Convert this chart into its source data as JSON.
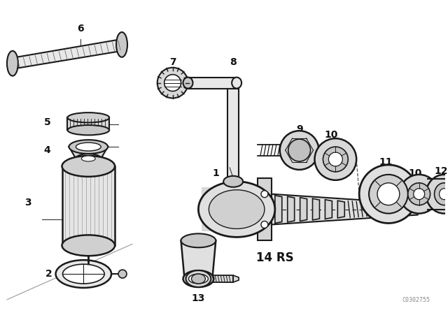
{
  "bg_color": "#ffffff",
  "line_color": "#1a1a1a",
  "label_color": "#111111",
  "watermark": "C0302755",
  "center_label": "14 RS"
}
